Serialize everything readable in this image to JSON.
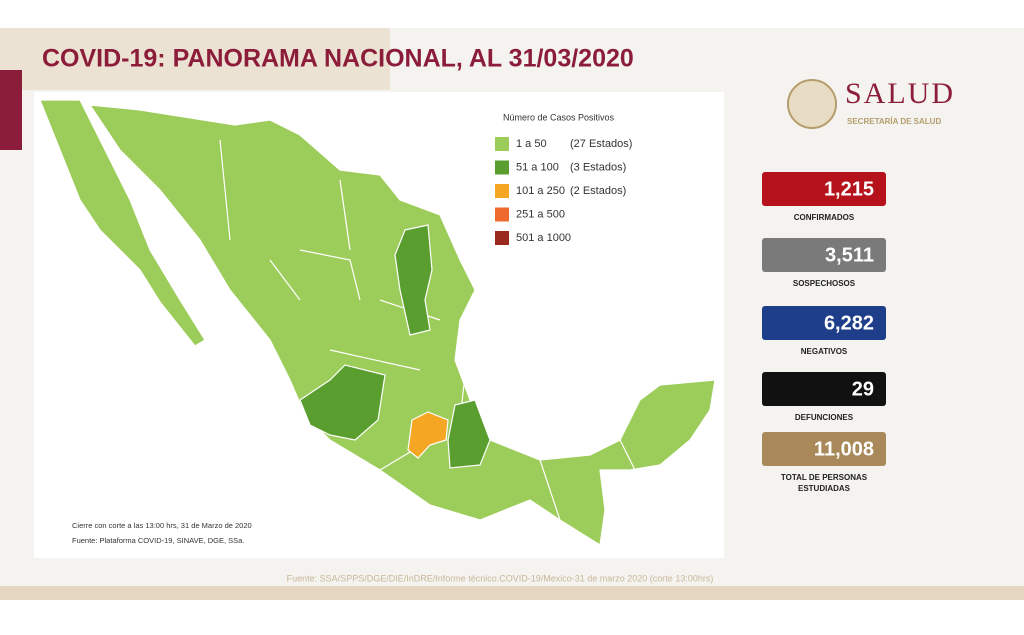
{
  "header": {
    "title": "COVID-19: PANORAMA NACIONAL, AL 31/03/2020"
  },
  "logo": {
    "name": "SALUD",
    "subtitle": "SECRETARÍA DE SALUD"
  },
  "legend": {
    "title": "Número de Casos Positivos",
    "items": [
      {
        "range": "1 a 50",
        "count": "(27 Estados)",
        "color": "#9ccc5a"
      },
      {
        "range": "51 a 100",
        "count": "(3 Estados)",
        "color": "#5a9e2f"
      },
      {
        "range": "101 a 250",
        "count": "(2 Estados)",
        "color": "#f5a623"
      },
      {
        "range": "251 a 500",
        "color": "#ef6a2e"
      },
      {
        "range": "501 a 1000",
        "color": "#9b2a1e"
      }
    ]
  },
  "stats": [
    {
      "value": "1,215",
      "label": "CONFIRMADOS",
      "color": "#b5121b"
    },
    {
      "value": "3,511",
      "label": "SOSPECHOSOS",
      "color": "#7a7a7a"
    },
    {
      "value": "6,282",
      "label": "NEGATIVOS",
      "color": "#1f3e8a"
    },
    {
      "value": "29",
      "label": "DEFUNCIONES",
      "color": "#111111"
    },
    {
      "value": "11,008",
      "label": "TOTAL DE PERSONAS ESTUDIADAS",
      "color": "#a9895a"
    }
  ],
  "notes": [
    "Cierre con corte a las 13:00 hrs, 31 de Marzo de 2020",
    "Fuente: Plataforma COVID-19, SINAVE, DGE, SSa."
  ],
  "footer": "Fuente: SSA/SPPS/DGE/DIE/InDRE/Informe técnico.COVID-19/Mexico-31 de marzo 2020 (corte 13:00hrs)"
}
